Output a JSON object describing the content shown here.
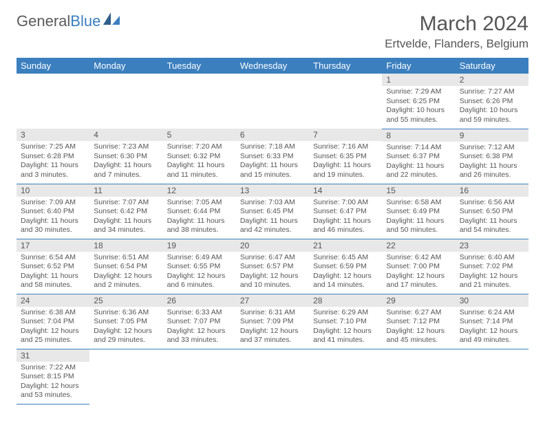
{
  "logo": {
    "text1": "General",
    "text2": "Blue"
  },
  "title": "March 2024",
  "location": "Ertvelde, Flanders, Belgium",
  "colors": {
    "header_bg": "#3b7fbf",
    "header_text": "#ffffff",
    "daynum_bg": "#e8e8e8",
    "text": "#555555",
    "row_divider": "#3b7fbf"
  },
  "weekdays": [
    "Sunday",
    "Monday",
    "Tuesday",
    "Wednesday",
    "Thursday",
    "Friday",
    "Saturday"
  ],
  "weeks": [
    [
      {
        "blank": true
      },
      {
        "blank": true
      },
      {
        "blank": true
      },
      {
        "blank": true
      },
      {
        "blank": true
      },
      {
        "n": "1",
        "sr": "Sunrise: 7:29 AM",
        "ss": "Sunset: 6:25 PM",
        "dl": "Daylight: 10 hours and 55 minutes."
      },
      {
        "n": "2",
        "sr": "Sunrise: 7:27 AM",
        "ss": "Sunset: 6:26 PM",
        "dl": "Daylight: 10 hours and 59 minutes."
      }
    ],
    [
      {
        "n": "3",
        "sr": "Sunrise: 7:25 AM",
        "ss": "Sunset: 6:28 PM",
        "dl": "Daylight: 11 hours and 3 minutes."
      },
      {
        "n": "4",
        "sr": "Sunrise: 7:23 AM",
        "ss": "Sunset: 6:30 PM",
        "dl": "Daylight: 11 hours and 7 minutes."
      },
      {
        "n": "5",
        "sr": "Sunrise: 7:20 AM",
        "ss": "Sunset: 6:32 PM",
        "dl": "Daylight: 11 hours and 11 minutes."
      },
      {
        "n": "6",
        "sr": "Sunrise: 7:18 AM",
        "ss": "Sunset: 6:33 PM",
        "dl": "Daylight: 11 hours and 15 minutes."
      },
      {
        "n": "7",
        "sr": "Sunrise: 7:16 AM",
        "ss": "Sunset: 6:35 PM",
        "dl": "Daylight: 11 hours and 19 minutes."
      },
      {
        "n": "8",
        "sr": "Sunrise: 7:14 AM",
        "ss": "Sunset: 6:37 PM",
        "dl": "Daylight: 11 hours and 22 minutes."
      },
      {
        "n": "9",
        "sr": "Sunrise: 7:12 AM",
        "ss": "Sunset: 6:38 PM",
        "dl": "Daylight: 11 hours and 26 minutes."
      }
    ],
    [
      {
        "n": "10",
        "sr": "Sunrise: 7:09 AM",
        "ss": "Sunset: 6:40 PM",
        "dl": "Daylight: 11 hours and 30 minutes."
      },
      {
        "n": "11",
        "sr": "Sunrise: 7:07 AM",
        "ss": "Sunset: 6:42 PM",
        "dl": "Daylight: 11 hours and 34 minutes."
      },
      {
        "n": "12",
        "sr": "Sunrise: 7:05 AM",
        "ss": "Sunset: 6:44 PM",
        "dl": "Daylight: 11 hours and 38 minutes."
      },
      {
        "n": "13",
        "sr": "Sunrise: 7:03 AM",
        "ss": "Sunset: 6:45 PM",
        "dl": "Daylight: 11 hours and 42 minutes."
      },
      {
        "n": "14",
        "sr": "Sunrise: 7:00 AM",
        "ss": "Sunset: 6:47 PM",
        "dl": "Daylight: 11 hours and 46 minutes."
      },
      {
        "n": "15",
        "sr": "Sunrise: 6:58 AM",
        "ss": "Sunset: 6:49 PM",
        "dl": "Daylight: 11 hours and 50 minutes."
      },
      {
        "n": "16",
        "sr": "Sunrise: 6:56 AM",
        "ss": "Sunset: 6:50 PM",
        "dl": "Daylight: 11 hours and 54 minutes."
      }
    ],
    [
      {
        "n": "17",
        "sr": "Sunrise: 6:54 AM",
        "ss": "Sunset: 6:52 PM",
        "dl": "Daylight: 11 hours and 58 minutes."
      },
      {
        "n": "18",
        "sr": "Sunrise: 6:51 AM",
        "ss": "Sunset: 6:54 PM",
        "dl": "Daylight: 12 hours and 2 minutes."
      },
      {
        "n": "19",
        "sr": "Sunrise: 6:49 AM",
        "ss": "Sunset: 6:55 PM",
        "dl": "Daylight: 12 hours and 6 minutes."
      },
      {
        "n": "20",
        "sr": "Sunrise: 6:47 AM",
        "ss": "Sunset: 6:57 PM",
        "dl": "Daylight: 12 hours and 10 minutes."
      },
      {
        "n": "21",
        "sr": "Sunrise: 6:45 AM",
        "ss": "Sunset: 6:59 PM",
        "dl": "Daylight: 12 hours and 14 minutes."
      },
      {
        "n": "22",
        "sr": "Sunrise: 6:42 AM",
        "ss": "Sunset: 7:00 PM",
        "dl": "Daylight: 12 hours and 17 minutes."
      },
      {
        "n": "23",
        "sr": "Sunrise: 6:40 AM",
        "ss": "Sunset: 7:02 PM",
        "dl": "Daylight: 12 hours and 21 minutes."
      }
    ],
    [
      {
        "n": "24",
        "sr": "Sunrise: 6:38 AM",
        "ss": "Sunset: 7:04 PM",
        "dl": "Daylight: 12 hours and 25 minutes."
      },
      {
        "n": "25",
        "sr": "Sunrise: 6:36 AM",
        "ss": "Sunset: 7:05 PM",
        "dl": "Daylight: 12 hours and 29 minutes."
      },
      {
        "n": "26",
        "sr": "Sunrise: 6:33 AM",
        "ss": "Sunset: 7:07 PM",
        "dl": "Daylight: 12 hours and 33 minutes."
      },
      {
        "n": "27",
        "sr": "Sunrise: 6:31 AM",
        "ss": "Sunset: 7:09 PM",
        "dl": "Daylight: 12 hours and 37 minutes."
      },
      {
        "n": "28",
        "sr": "Sunrise: 6:29 AM",
        "ss": "Sunset: 7:10 PM",
        "dl": "Daylight: 12 hours and 41 minutes."
      },
      {
        "n": "29",
        "sr": "Sunrise: 6:27 AM",
        "ss": "Sunset: 7:12 PM",
        "dl": "Daylight: 12 hours and 45 minutes."
      },
      {
        "n": "30",
        "sr": "Sunrise: 6:24 AM",
        "ss": "Sunset: 7:14 PM",
        "dl": "Daylight: 12 hours and 49 minutes."
      }
    ],
    [
      {
        "n": "31",
        "sr": "Sunrise: 7:22 AM",
        "ss": "Sunset: 8:15 PM",
        "dl": "Daylight: 12 hours and 53 minutes."
      },
      {
        "blank": true
      },
      {
        "blank": true
      },
      {
        "blank": true
      },
      {
        "blank": true
      },
      {
        "blank": true
      },
      {
        "blank": true
      }
    ]
  ]
}
